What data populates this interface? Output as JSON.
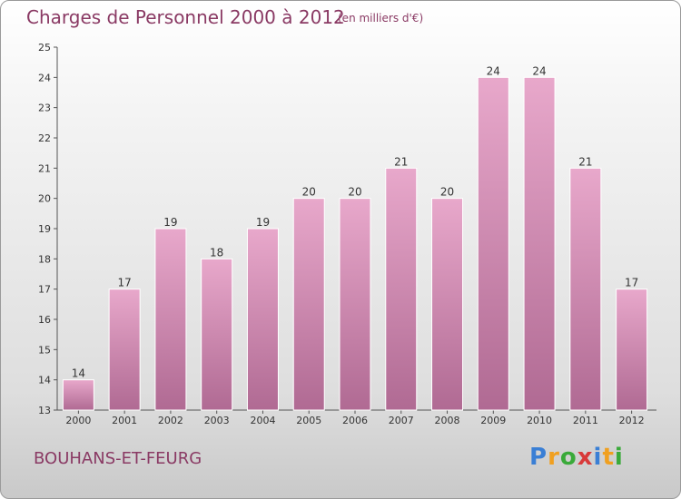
{
  "chart_data": {
    "type": "bar",
    "title": "Charges de Personnel 2000 à 2012",
    "subtitle": "(en milliers d'€)",
    "categories": [
      "2000",
      "2001",
      "2002",
      "2003",
      "2004",
      "2005",
      "2006",
      "2007",
      "2008",
      "2009",
      "2010",
      "2011",
      "2012"
    ],
    "values": [
      14,
      17,
      19,
      18,
      19,
      20,
      20,
      21,
      20,
      24,
      24,
      21,
      17
    ],
    "ylim": [
      13,
      25
    ],
    "yticks": [
      13,
      14,
      15,
      16,
      17,
      18,
      19,
      20,
      21,
      22,
      23,
      24,
      25
    ],
    "grid": false,
    "colors": {
      "bar": "#cc7ba8",
      "bar_light": "#e8a8cb",
      "bar_dark": "#b06a93",
      "text": "#8a3a64"
    }
  },
  "footer": {
    "location": "BOUHANS-ET-FEURG"
  },
  "logo": {
    "letters": [
      "P",
      "r",
      "o",
      "x",
      "i",
      "t",
      "i"
    ],
    "colors": [
      "#3a7fd5",
      "#f0a020",
      "#3aaa3a",
      "#d83a3a",
      "#3a7fd5",
      "#f0a020",
      "#3aaa3a"
    ]
  }
}
